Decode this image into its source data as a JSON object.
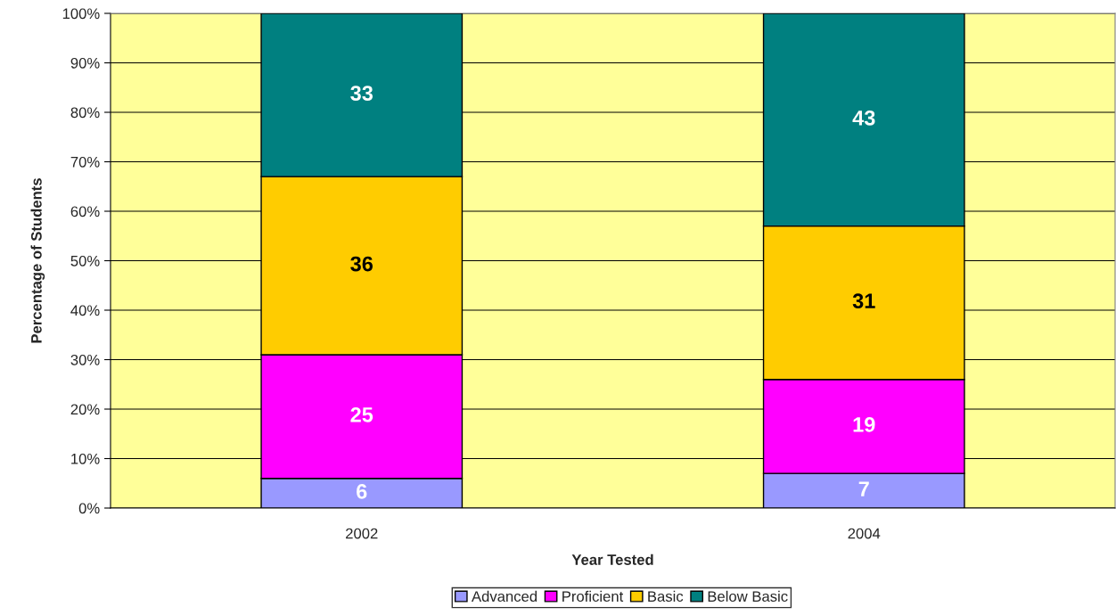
{
  "chart_data": {
    "type": "bar",
    "stacked": true,
    "xlabel": "Year Tested",
    "ylabel": "Percentage of Students",
    "categories": [
      "2002",
      "2004"
    ],
    "series": [
      {
        "name": "Advanced",
        "color": "#9999ff",
        "values": [
          6,
          7
        ]
      },
      {
        "name": "Proficient",
        "color": "#ff00ff",
        "values": [
          25,
          19
        ]
      },
      {
        "name": "Basic",
        "color": "#ffcc00",
        "values": [
          36,
          31
        ]
      },
      {
        "name": "Below Basic",
        "color": "#008080",
        "values": [
          33,
          43
        ]
      }
    ],
    "ylim": [
      0,
      100
    ],
    "yticks": [
      {
        "value": 0,
        "label": "0%"
      },
      {
        "value": 10,
        "label": "10%"
      },
      {
        "value": 20,
        "label": "20%"
      },
      {
        "value": 30,
        "label": "30%"
      },
      {
        "value": 40,
        "label": "40%"
      },
      {
        "value": 50,
        "label": "50%"
      },
      {
        "value": 60,
        "label": "60%"
      },
      {
        "value": 70,
        "label": "70%"
      },
      {
        "value": 80,
        "label": "80%"
      },
      {
        "value": 90,
        "label": "90%"
      },
      {
        "value": 100,
        "label": "100%"
      }
    ],
    "grid": "y",
    "legend": "bottom",
    "data_labels": true
  }
}
